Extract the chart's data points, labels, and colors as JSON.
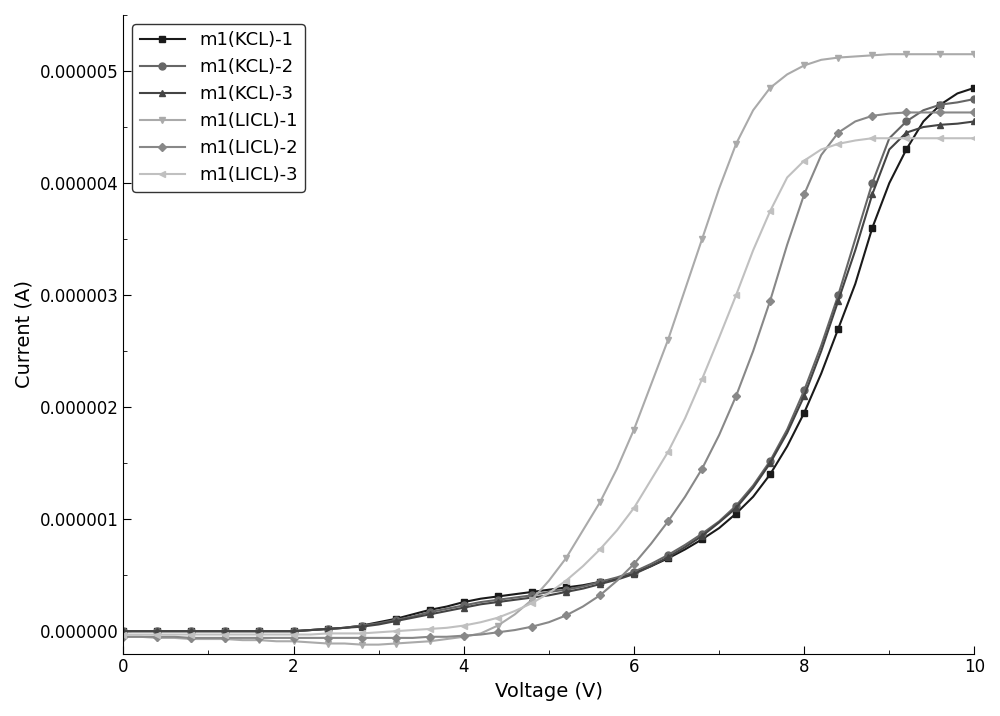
{
  "title": "",
  "xlabel": "Voltage (V)",
  "ylabel": "Current (A)",
  "xlim": [
    0,
    10
  ],
  "ylim": [
    -2e-07,
    5.5e-06
  ],
  "yticks": [
    0.0,
    1e-06,
    2e-06,
    3e-06,
    4e-06,
    5e-06
  ],
  "ytick_labels": [
    "0.000000",
    "0.000001",
    "0.000002",
    "0.000003",
    "0.000004",
    "0.000005"
  ],
  "xticks": [
    0,
    2,
    4,
    6,
    8,
    10
  ],
  "series": [
    {
      "label": "m1(KCL)-1",
      "color": "#1a1a1a",
      "marker": "s",
      "markersize": 5,
      "markevery": 2,
      "linewidth": 1.5,
      "x": [
        0.0,
        0.2,
        0.4,
        0.6,
        0.8,
        1.0,
        1.2,
        1.4,
        1.6,
        1.8,
        2.0,
        2.2,
        2.4,
        2.6,
        2.8,
        3.0,
        3.2,
        3.4,
        3.6,
        3.8,
        4.0,
        4.2,
        4.4,
        4.6,
        4.8,
        5.0,
        5.2,
        5.4,
        5.6,
        5.8,
        6.0,
        6.2,
        6.4,
        6.6,
        6.8,
        7.0,
        7.2,
        7.4,
        7.6,
        7.8,
        8.0,
        8.2,
        8.4,
        8.6,
        8.8,
        9.0,
        9.2,
        9.4,
        9.6,
        9.8,
        10.0
      ],
      "y": [
        0,
        0,
        0,
        0,
        0,
        0,
        0,
        0,
        0,
        0,
        0,
        1e-08,
        2e-08,
        3e-08,
        5e-08,
        8e-08,
        1.1e-07,
        1.5e-07,
        1.9e-07,
        2.2e-07,
        2.6e-07,
        2.9e-07,
        3.1e-07,
        3.3e-07,
        3.5e-07,
        3.7e-07,
        3.9e-07,
        4.1e-07,
        4.4e-07,
        4.7e-07,
        5.2e-07,
        5.8e-07,
        6.5e-07,
        7.3e-07,
        8.2e-07,
        9.2e-07,
        1.05e-06,
        1.2e-06,
        1.4e-06,
        1.65e-06,
        1.95e-06,
        2.3e-06,
        2.7e-06,
        3.1e-06,
        3.6e-06,
        4e-06,
        4.3e-06,
        4.55e-06,
        4.7e-06,
        4.8e-06,
        4.85e-06
      ]
    },
    {
      "label": "m1(KCL)-2",
      "color": "#666666",
      "marker": "o",
      "markersize": 5,
      "markevery": 2,
      "linewidth": 1.5,
      "x": [
        0.0,
        0.2,
        0.4,
        0.6,
        0.8,
        1.0,
        1.2,
        1.4,
        1.6,
        1.8,
        2.0,
        2.2,
        2.4,
        2.6,
        2.8,
        3.0,
        3.2,
        3.4,
        3.6,
        3.8,
        4.0,
        4.2,
        4.4,
        4.6,
        4.8,
        5.0,
        5.2,
        5.4,
        5.6,
        5.8,
        6.0,
        6.2,
        6.4,
        6.6,
        6.8,
        7.0,
        7.2,
        7.4,
        7.6,
        7.8,
        8.0,
        8.2,
        8.4,
        8.6,
        8.8,
        9.0,
        9.2,
        9.4,
        9.6,
        9.8,
        10.0
      ],
      "y": [
        0,
        0,
        0,
        0,
        0,
        0,
        0,
        0,
        0,
        0,
        0,
        1e-08,
        2e-08,
        3e-08,
        5e-08,
        7e-08,
        1e-07,
        1.3e-07,
        1.7e-07,
        2e-07,
        2.3e-07,
        2.6e-07,
        2.8e-07,
        3e-07,
        3.2e-07,
        3.5e-07,
        3.7e-07,
        4e-07,
        4.4e-07,
        4.8e-07,
        5.3e-07,
        6e-07,
        6.8e-07,
        7.7e-07,
        8.7e-07,
        9.8e-07,
        1.12e-06,
        1.3e-06,
        1.52e-06,
        1.8e-06,
        2.15e-06,
        2.55e-06,
        3e-06,
        3.5e-06,
        4e-06,
        4.4e-06,
        4.55e-06,
        4.65e-06,
        4.7e-06,
        4.72e-06,
        4.75e-06
      ]
    },
    {
      "label": "m1(KCL)-3",
      "color": "#444444",
      "marker": "^",
      "markersize": 5,
      "markevery": 2,
      "linewidth": 1.5,
      "x": [
        0.0,
        0.2,
        0.4,
        0.6,
        0.8,
        1.0,
        1.2,
        1.4,
        1.6,
        1.8,
        2.0,
        2.2,
        2.4,
        2.6,
        2.8,
        3.0,
        3.2,
        3.4,
        3.6,
        3.8,
        4.0,
        4.2,
        4.4,
        4.6,
        4.8,
        5.0,
        5.2,
        5.4,
        5.6,
        5.8,
        6.0,
        6.2,
        6.4,
        6.6,
        6.8,
        7.0,
        7.2,
        7.4,
        7.6,
        7.8,
        8.0,
        8.2,
        8.4,
        8.6,
        8.8,
        9.0,
        9.2,
        9.4,
        9.6,
        9.8,
        10.0
      ],
      "y": [
        0,
        0,
        0,
        0,
        0,
        0,
        0,
        0,
        0,
        0,
        0,
        1e-08,
        2e-08,
        3e-08,
        4e-08,
        6e-08,
        9e-08,
        1.2e-07,
        1.5e-07,
        1.8e-07,
        2.1e-07,
        2.4e-07,
        2.6e-07,
        2.8e-07,
        3e-07,
        3.2e-07,
        3.5e-07,
        3.8e-07,
        4.2e-07,
        4.6e-07,
        5.1e-07,
        5.8e-07,
        6.6e-07,
        7.5e-07,
        8.5e-07,
        9.7e-07,
        1.1e-06,
        1.28e-06,
        1.5e-06,
        1.77e-06,
        2.1e-06,
        2.5e-06,
        2.95e-06,
        3.4e-06,
        3.9e-06,
        4.3e-06,
        4.45e-06,
        4.5e-06,
        4.52e-06,
        4.53e-06,
        4.55e-06
      ]
    },
    {
      "label": "m1(LICL)-1",
      "color": "#aaaaaa",
      "marker": "v",
      "markersize": 5,
      "markevery": 2,
      "linewidth": 1.5,
      "x": [
        0.0,
        0.2,
        0.4,
        0.6,
        0.8,
        1.0,
        1.2,
        1.4,
        1.6,
        1.8,
        2.0,
        2.2,
        2.4,
        2.6,
        2.8,
        3.0,
        3.2,
        3.4,
        3.6,
        3.8,
        4.0,
        4.2,
        4.4,
        4.6,
        4.8,
        5.0,
        5.2,
        5.4,
        5.6,
        5.8,
        6.0,
        6.2,
        6.4,
        6.6,
        6.8,
        7.0,
        7.2,
        7.4,
        7.6,
        7.8,
        8.0,
        8.2,
        8.4,
        8.6,
        8.8,
        9.0,
        9.2,
        9.4,
        9.6,
        9.8,
        10.0
      ],
      "y": [
        -5e-08,
        -5e-08,
        -6e-08,
        -6e-08,
        -7e-08,
        -7e-08,
        -7e-08,
        -8e-08,
        -8e-08,
        -9e-08,
        -9e-08,
        -1e-07,
        -1.1e-07,
        -1.1e-07,
        -1.2e-07,
        -1.2e-07,
        -1.1e-07,
        -1e-07,
        -9e-08,
        -7e-08,
        -5e-08,
        -2e-08,
        5e-08,
        1.5e-07,
        2.8e-07,
        4.5e-07,
        6.5e-07,
        9e-07,
        1.15e-06,
        1.45e-06,
        1.8e-06,
        2.2e-06,
        2.6e-06,
        3.05e-06,
        3.5e-06,
        3.95e-06,
        4.35e-06,
        4.65e-06,
        4.85e-06,
        4.97e-06,
        5.05e-06,
        5.1e-06,
        5.12e-06,
        5.13e-06,
        5.14e-06,
        5.15e-06,
        5.15e-06,
        5.15e-06,
        5.15e-06,
        5.15e-06,
        5.15e-06
      ]
    },
    {
      "label": "m1(LICL)-2",
      "color": "#888888",
      "marker": "D",
      "markersize": 4,
      "markevery": 2,
      "linewidth": 1.5,
      "x": [
        0.0,
        0.2,
        0.4,
        0.6,
        0.8,
        1.0,
        1.2,
        1.4,
        1.6,
        1.8,
        2.0,
        2.2,
        2.4,
        2.6,
        2.8,
        3.0,
        3.2,
        3.4,
        3.6,
        3.8,
        4.0,
        4.2,
        4.4,
        4.6,
        4.8,
        5.0,
        5.2,
        5.4,
        5.6,
        5.8,
        6.0,
        6.2,
        6.4,
        6.6,
        6.8,
        7.0,
        7.2,
        7.4,
        7.6,
        7.8,
        8.0,
        8.2,
        8.4,
        8.6,
        8.8,
        9.0,
        9.2,
        9.4,
        9.6,
        9.8,
        10.0
      ],
      "y": [
        -5e-08,
        -5e-08,
        -5e-08,
        -5e-08,
        -6e-08,
        -6e-08,
        -6e-08,
        -6e-08,
        -6e-08,
        -6e-08,
        -6e-08,
        -6e-08,
        -6e-08,
        -6e-08,
        -6e-08,
        -6e-08,
        -6e-08,
        -6e-08,
        -5e-08,
        -5e-08,
        -4e-08,
        -3e-08,
        -1e-08,
        1e-08,
        4e-08,
        8e-08,
        1.4e-07,
        2.2e-07,
        3.2e-07,
        4.5e-07,
        6e-07,
        7.8e-07,
        9.8e-07,
        1.2e-06,
        1.45e-06,
        1.75e-06,
        2.1e-06,
        2.5e-06,
        2.95e-06,
        3.45e-06,
        3.9e-06,
        4.25e-06,
        4.45e-06,
        4.55e-06,
        4.6e-06,
        4.62e-06,
        4.63e-06,
        4.63e-06,
        4.63e-06,
        4.63e-06,
        4.63e-06
      ]
    },
    {
      "label": "m1(LICL)-3",
      "color": "#c0c0c0",
      "marker": "<",
      "markersize": 5,
      "markevery": 2,
      "linewidth": 1.5,
      "x": [
        0.0,
        0.2,
        0.4,
        0.6,
        0.8,
        1.0,
        1.2,
        1.4,
        1.6,
        1.8,
        2.0,
        2.2,
        2.4,
        2.6,
        2.8,
        3.0,
        3.2,
        3.4,
        3.6,
        3.8,
        4.0,
        4.2,
        4.4,
        4.6,
        4.8,
        5.0,
        5.2,
        5.4,
        5.6,
        5.8,
        6.0,
        6.2,
        6.4,
        6.6,
        6.8,
        7.0,
        7.2,
        7.4,
        7.6,
        7.8,
        8.0,
        8.2,
        8.4,
        8.6,
        8.8,
        9.0,
        9.2,
        9.4,
        9.6,
        9.8,
        10.0
      ],
      "y": [
        -3e-08,
        -3e-08,
        -3e-08,
        -3e-08,
        -3e-08,
        -3e-08,
        -3e-08,
        -3e-08,
        -3e-08,
        -3e-08,
        -3e-08,
        -3e-08,
        -2e-08,
        -2e-08,
        -2e-08,
        -1e-08,
        0,
        1e-08,
        2e-08,
        3e-08,
        5e-08,
        8e-08,
        1.2e-07,
        1.8e-07,
        2.5e-07,
        3.4e-07,
        4.5e-07,
        5.8e-07,
        7.3e-07,
        9e-07,
        1.1e-06,
        1.35e-06,
        1.6e-06,
        1.9e-06,
        2.25e-06,
        2.62e-06,
        3e-06,
        3.4e-06,
        3.75e-06,
        4.05e-06,
        4.2e-06,
        4.3e-06,
        4.35e-06,
        4.38e-06,
        4.4e-06,
        4.4e-06,
        4.4e-06,
        4.4e-06,
        4.4e-06,
        4.4e-06,
        4.4e-06
      ]
    }
  ],
  "legend_loc": "upper left",
  "background_color": "#ffffff",
  "fontsize": 14
}
